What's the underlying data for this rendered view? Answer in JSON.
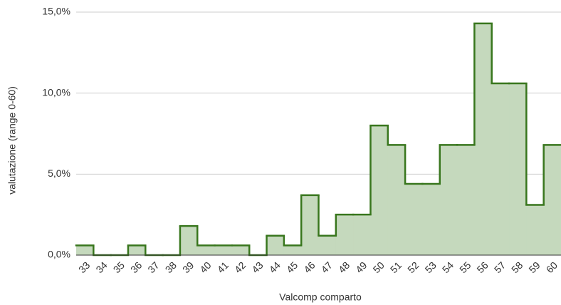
{
  "chart_data": {
    "type": "step-area",
    "x_label": "Valcomp comparto",
    "y_label": "valutazione (range 0-60)",
    "categories": [
      "33",
      "34",
      "35",
      "36",
      "37",
      "38",
      "39",
      "40",
      "41",
      "42",
      "43",
      "44",
      "45",
      "46",
      "47",
      "48",
      "49",
      "50",
      "51",
      "52",
      "53",
      "54",
      "55",
      "56",
      "57",
      "58",
      "59",
      "60"
    ],
    "values": [
      0.6,
      0,
      0,
      0.6,
      0,
      0,
      1.8,
      0.6,
      0.6,
      0.6,
      0,
      1.2,
      0.6,
      3.7,
      1.2,
      2.5,
      2.5,
      8.0,
      6.8,
      4.4,
      4.4,
      6.8,
      6.8,
      14.3,
      10.6,
      10.6,
      3.1,
      6.8
    ],
    "color": "#38761d",
    "fill": "#c5d9bd",
    "ylim": [
      0,
      15
    ],
    "yticks": [
      {
        "value": 0,
        "label": "0,0%"
      },
      {
        "value": 5,
        "label": "5,0%"
      },
      {
        "value": 10,
        "label": "10,0%"
      },
      {
        "value": 15,
        "label": "15,0%"
      }
    ],
    "grid": true
  }
}
